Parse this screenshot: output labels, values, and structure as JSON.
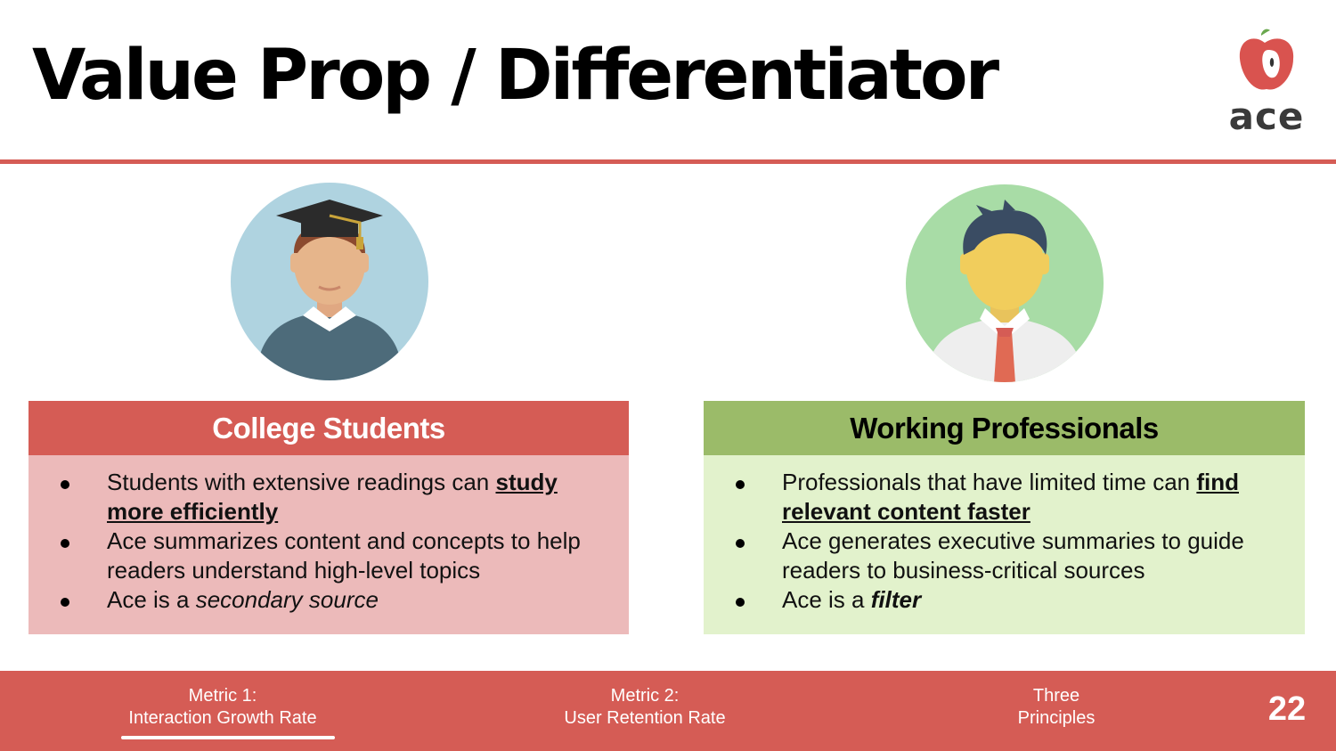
{
  "slide": {
    "title": "Value Prop / Differentiator",
    "logo": {
      "text": "ace",
      "icon": "apple-icon"
    },
    "colors": {
      "accent": "#d55c55",
      "green": "#9bbb69",
      "red_light": "#ecbaba",
      "green_light": "#e2f2cc"
    }
  },
  "students": {
    "avatar_icon": "graduate-student-icon",
    "heading": "College Students",
    "bullets": [
      {
        "pre": "Students with extensive readings can ",
        "strong": "study more efficiently",
        "post": ""
      },
      {
        "pre": "Ace summarizes content and concepts to help readers understand high-level topics",
        "strong": "",
        "post": ""
      },
      {
        "pre": "Ace is a ",
        "em": "secondary source",
        "post": ""
      }
    ]
  },
  "professionals": {
    "avatar_icon": "businessman-icon",
    "heading": "Working Professionals",
    "bullets": [
      {
        "pre": "Professionals that have limited time can ",
        "strong": "find relevant content faster",
        "post": ""
      },
      {
        "pre": "Ace generates executive summaries to guide readers to business-critical sources",
        "strong": "",
        "post": ""
      },
      {
        "pre": "Ace is a ",
        "strong_em": "filter",
        "post": ""
      }
    ]
  },
  "footer": {
    "nav": [
      {
        "line1": "Metric 1:",
        "line2": "Interaction Growth Rate",
        "active": true
      },
      {
        "line1": "Metric 2:",
        "line2": "User Retention Rate",
        "active": false
      },
      {
        "line1": "Three",
        "line2": "Principles",
        "active": false
      }
    ],
    "page_number": "22"
  }
}
